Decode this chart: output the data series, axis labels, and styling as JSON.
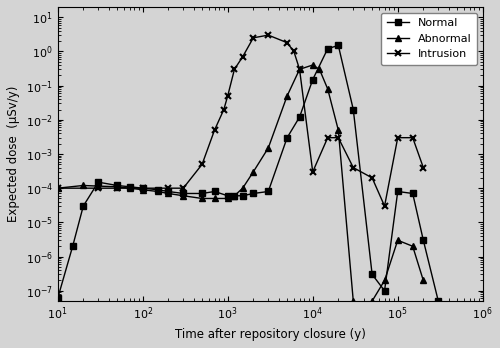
{
  "background_color": "#d4d4d4",
  "xlabel": "Time after repository closure (y)",
  "ylabel": "Expected dose  (μSv/y)",
  "xlim": [
    10,
    1000000
  ],
  "ylim": [
    5e-08,
    20
  ],
  "legend_labels": [
    "Normal",
    "Abnormal",
    "Intrusion"
  ],
  "normal_x": [
    10,
    15,
    20,
    30,
    50,
    70,
    100,
    150,
    200,
    300,
    500,
    700,
    1000,
    1200,
    1500,
    2000,
    3000,
    5000,
    7000,
    10000,
    15000,
    20000,
    30000,
    50000,
    70000,
    100000,
    150000,
    200000,
    300000
  ],
  "normal_y": [
    6e-08,
    2e-06,
    3e-05,
    0.00015,
    0.00012,
    0.00011,
    0.0001,
    9e-05,
    8e-05,
    7e-05,
    7e-05,
    8e-05,
    6e-05,
    6e-05,
    6e-05,
    7e-05,
    8e-05,
    0.003,
    0.012,
    0.15,
    1.2,
    1.5,
    0.02,
    3e-07,
    1e-07,
    8e-05,
    7e-05,
    3e-06,
    5e-08
  ],
  "abnormal_x": [
    10,
    20,
    30,
    50,
    70,
    100,
    150,
    200,
    300,
    500,
    700,
    1000,
    1200,
    1500,
    2000,
    3000,
    5000,
    7000,
    10000,
    12000,
    15000,
    20000,
    30000,
    40000,
    50000,
    70000,
    100000,
    150000,
    200000
  ],
  "abnormal_y": [
    0.0001,
    0.00012,
    0.000115,
    0.00011,
    0.0001,
    9e-05,
    8e-05,
    7e-05,
    6e-05,
    5e-05,
    5e-05,
    5e-05,
    6e-05,
    0.0001,
    0.0003,
    0.0015,
    0.05,
    0.3,
    0.4,
    0.3,
    0.08,
    0.005,
    5e-08,
    3e-08,
    5e-08,
    2e-07,
    3e-06,
    2e-06,
    2e-07
  ],
  "intrusion_x": [
    10,
    30,
    50,
    100,
    200,
    300,
    500,
    700,
    900,
    1000,
    1200,
    1500,
    2000,
    3000,
    5000,
    6000,
    7000,
    10000,
    15000,
    20000,
    30000,
    50000,
    70000,
    100000,
    150000,
    200000
  ],
  "intrusion_y": [
    0.0001,
    0.0001,
    0.0001,
    0.0001,
    0.0001,
    0.0001,
    0.0005,
    0.005,
    0.02,
    0.05,
    0.3,
    0.7,
    2.5,
    3.0,
    1.8,
    1.0,
    0.3,
    0.0003,
    0.003,
    0.003,
    0.0004,
    0.0002,
    3e-05,
    0.003,
    0.003,
    0.0004
  ]
}
